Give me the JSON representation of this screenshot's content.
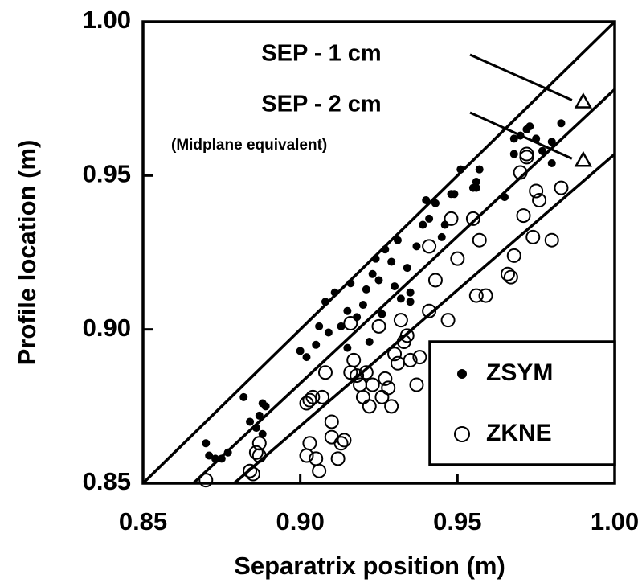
{
  "chart_data": {
    "type": "scatter",
    "x_label": "Separatrix position (m)",
    "y_label": "Profile location (m)",
    "xlim": [
      0.85,
      1.0
    ],
    "ylim": [
      0.85,
      1.0
    ],
    "xticks": [
      0.85,
      {
        "value": 0.9,
        "label": "0.90"
      },
      0.95,
      {
        "value": 1.0,
        "label": "1.00"
      }
    ],
    "yticks": [
      0.85,
      {
        "value": 0.9,
        "label": "0.90"
      },
      0.95,
      {
        "value": 1.0,
        "label": "1.00"
      }
    ],
    "legend": "lower right",
    "reference_lines": [
      {
        "x": [
          0.85,
          1.0
        ],
        "values": [
          0.85,
          1.0
        ]
      },
      {
        "x": [
          0.866,
          1.0
        ],
        "values": [
          0.85,
          0.978
        ]
      },
      {
        "x": [
          0.879,
          1.0
        ],
        "values": [
          0.85,
          0.957
        ]
      }
    ],
    "annotations": [
      {
        "text": "SEP - 1 cm",
        "x": 0.99,
        "y": 0.974
      },
      {
        "text": "SEP - 2 cm",
        "x": 0.99,
        "y": 0.955
      },
      {
        "text": "(Midplane equivalent)"
      }
    ],
    "series": [
      {
        "name": "ZSYM",
        "marker": "filled",
        "color": "#000000",
        "x": [
          0.87,
          0.871,
          0.873,
          0.875,
          0.877,
          0.882,
          0.884,
          0.886,
          0.887,
          0.888,
          0.889,
          0.888,
          0.9,
          0.902,
          0.905,
          0.906,
          0.908,
          0.909,
          0.911,
          0.913,
          0.915,
          0.915,
          0.916,
          0.918,
          0.92,
          0.921,
          0.922,
          0.923,
          0.924,
          0.925,
          0.926,
          0.927,
          0.929,
          0.93,
          0.931,
          0.932,
          0.934,
          0.935,
          0.935,
          0.937,
          0.939,
          0.94,
          0.941,
          0.943,
          0.945,
          0.946,
          0.948,
          0.949,
          0.951,
          0.955,
          0.956,
          0.957,
          0.956,
          0.965,
          0.968,
          0.968,
          0.97,
          0.972,
          0.973,
          0.975,
          0.977,
          0.98,
          0.983,
          0.98
        ],
        "values": [
          0.863,
          0.859,
          0.858,
          0.858,
          0.86,
          0.878,
          0.87,
          0.868,
          0.872,
          0.876,
          0.875,
          0.866,
          0.893,
          0.891,
          0.895,
          0.901,
          0.909,
          0.899,
          0.912,
          0.901,
          0.894,
          0.906,
          0.915,
          0.904,
          0.908,
          0.913,
          0.896,
          0.918,
          0.923,
          0.916,
          0.905,
          0.926,
          0.922,
          0.914,
          0.929,
          0.91,
          0.92,
          0.912,
          0.909,
          0.927,
          0.934,
          0.942,
          0.936,
          0.941,
          0.93,
          0.934,
          0.944,
          0.944,
          0.952,
          0.946,
          0.948,
          0.952,
          0.946,
          0.943,
          0.962,
          0.957,
          0.963,
          0.965,
          0.966,
          0.962,
          0.958,
          0.954,
          0.967,
          0.961
        ]
      },
      {
        "name": "ZKNE",
        "marker": "open",
        "color": "#000000",
        "x": [
          0.87,
          0.884,
          0.885,
          0.886,
          0.887,
          0.887,
          0.902,
          0.903,
          0.902,
          0.903,
          0.904,
          0.905,
          0.906,
          0.907,
          0.908,
          0.91,
          0.91,
          0.912,
          0.913,
          0.914,
          0.916,
          0.916,
          0.917,
          0.918,
          0.919,
          0.92,
          0.921,
          0.922,
          0.923,
          0.925,
          0.926,
          0.927,
          0.928,
          0.929,
          0.93,
          0.931,
          0.932,
          0.933,
          0.934,
          0.935,
          0.937,
          0.938,
          0.941,
          0.941,
          0.943,
          0.947,
          0.948,
          0.95,
          0.955,
          0.956,
          0.957,
          0.959,
          0.966,
          0.967,
          0.968,
          0.97,
          0.971,
          0.972,
          0.972,
          0.975,
          0.976,
          0.974,
          0.98,
          0.983
        ],
        "values": [
          0.851,
          0.854,
          0.853,
          0.86,
          0.859,
          0.863,
          0.859,
          0.863,
          0.876,
          0.877,
          0.878,
          0.858,
          0.854,
          0.878,
          0.886,
          0.865,
          0.87,
          0.858,
          0.863,
          0.864,
          0.886,
          0.902,
          0.89,
          0.885,
          0.882,
          0.878,
          0.886,
          0.875,
          0.882,
          0.901,
          0.878,
          0.884,
          0.881,
          0.875,
          0.892,
          0.889,
          0.903,
          0.896,
          0.898,
          0.89,
          0.882,
          0.891,
          0.906,
          0.927,
          0.916,
          0.903,
          0.936,
          0.923,
          0.936,
          0.911,
          0.929,
          0.911,
          0.918,
          0.917,
          0.924,
          0.951,
          0.937,
          0.957,
          0.956,
          0.945,
          0.942,
          0.93,
          0.929,
          0.946
        ]
      }
    ]
  }
}
